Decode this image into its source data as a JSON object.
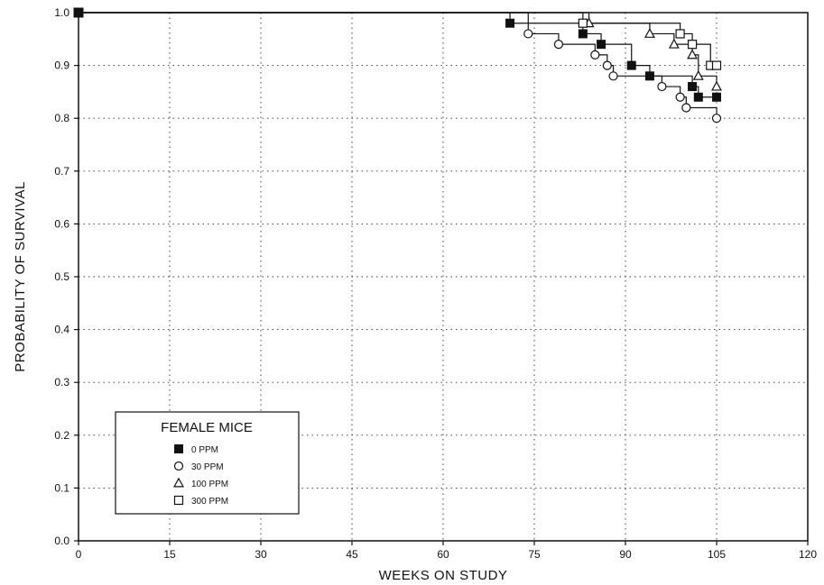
{
  "chart_data": {
    "type": "line",
    "xlabel": "WEEKS ON STUDY",
    "ylabel": "PROBABILITY OF SURVIVAL",
    "xlim": [
      0,
      120
    ],
    "ylim": [
      0,
      1.0
    ],
    "xticks": [
      0,
      15,
      30,
      45,
      60,
      75,
      90,
      105,
      120
    ],
    "xtick_labels": [
      "0",
      "15",
      "30",
      "45",
      "60",
      "75",
      "90",
      "105",
      "120"
    ],
    "yticks": [
      0,
      0.1,
      0.2,
      0.3,
      0.4,
      0.5,
      0.6,
      0.7,
      0.8,
      0.9,
      1.0
    ],
    "ytick_labels": [
      "0.0",
      "0.1",
      "0.2",
      "0.3",
      "0.4",
      "0.5",
      "0.6",
      "0.7",
      "0.8",
      "0.9",
      "1.0"
    ],
    "grid": true,
    "legend": {
      "title": "FEMALE MICE",
      "placement": "lower-left",
      "entries": [
        "0 PPM",
        "30 PPM",
        "100 PPM",
        "300 PPM"
      ]
    },
    "series": [
      {
        "name": "0 PPM",
        "marker": "filled-square",
        "color": "#111111",
        "steps": [
          [
            0,
            1.0
          ],
          [
            71,
            0.98
          ],
          [
            83,
            0.96
          ],
          [
            86,
            0.94
          ],
          [
            91,
            0.9
          ],
          [
            94,
            0.88
          ],
          [
            101,
            0.86
          ],
          [
            102,
            0.84
          ],
          [
            105,
            0.84
          ]
        ]
      },
      {
        "name": "30 PPM",
        "marker": "open-circle",
        "color": "#111111",
        "steps": [
          [
            0,
            1.0
          ],
          [
            74,
            0.96
          ],
          [
            79,
            0.94
          ],
          [
            85,
            0.92
          ],
          [
            87,
            0.9
          ],
          [
            88,
            0.88
          ],
          [
            96,
            0.86
          ],
          [
            99,
            0.84
          ],
          [
            100,
            0.82
          ],
          [
            105,
            0.8
          ]
        ]
      },
      {
        "name": "100 PPM",
        "marker": "open-triangle",
        "color": "#111111",
        "steps": [
          [
            0,
            1.0
          ],
          [
            84,
            0.98
          ],
          [
            94,
            0.96
          ],
          [
            98,
            0.94
          ],
          [
            101,
            0.92
          ],
          [
            102,
            0.88
          ],
          [
            105,
            0.86
          ]
        ]
      },
      {
        "name": "300 PPM",
        "marker": "open-square",
        "color": "#111111",
        "steps": [
          [
            0,
            1.0
          ],
          [
            83,
            0.98
          ],
          [
            99,
            0.96
          ],
          [
            101,
            0.94
          ],
          [
            104,
            0.9
          ],
          [
            105,
            0.9
          ]
        ]
      }
    ]
  }
}
